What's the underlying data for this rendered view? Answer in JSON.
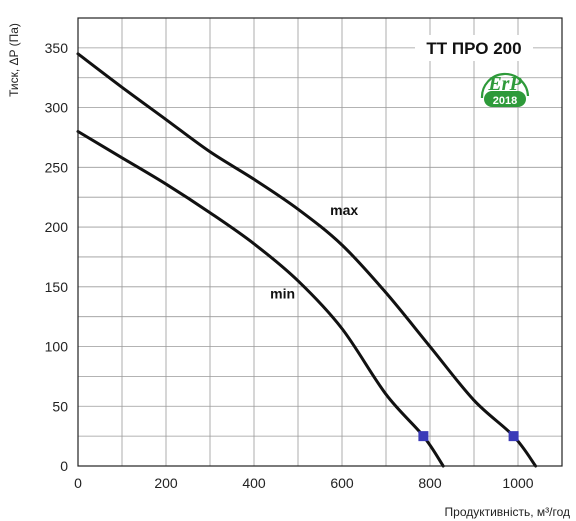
{
  "chart_data": {
    "type": "line",
    "title": "TT ПРО 200",
    "xlabel": "Продуктивність, м³/год",
    "ylabel": "Тиск, ΔP (Па)",
    "xlim": [
      0,
      1100
    ],
    "ylim": [
      0,
      375
    ],
    "x_ticks": [
      0,
      200,
      400,
      600,
      800,
      1000
    ],
    "y_ticks": [
      0,
      50,
      100,
      150,
      200,
      250,
      300,
      350
    ],
    "x_minor_step": 100,
    "y_minor_step": 25,
    "grid": true,
    "series": [
      {
        "name": "max",
        "x": [
          0,
          100,
          200,
          300,
          400,
          500,
          600,
          700,
          800,
          900,
          990,
          1040
        ],
        "y": [
          345,
          317,
          290,
          263,
          240,
          215,
          185,
          145,
          100,
          55,
          25,
          0
        ],
        "operating_point": [
          990,
          25
        ]
      },
      {
        "name": "min",
        "x": [
          0,
          100,
          200,
          300,
          400,
          500,
          600,
          700,
          785,
          830
        ],
        "y": [
          280,
          258,
          236,
          212,
          186,
          155,
          115,
          60,
          25,
          0
        ],
        "operating_point": [
          785,
          25
        ]
      }
    ],
    "marker_color": "#3a3ab8",
    "curve_color": "#111111"
  },
  "badge": {
    "text": "ErP",
    "year": "2018",
    "color": "#2e9a3a"
  }
}
